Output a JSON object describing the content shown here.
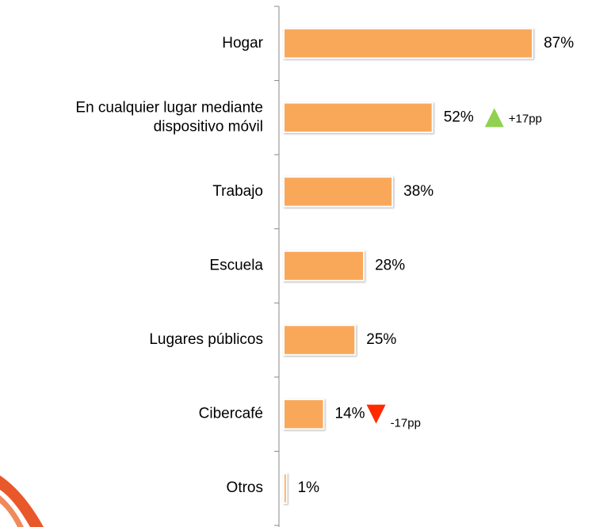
{
  "chart_data": {
    "type": "hbar",
    "categories": [
      "Hogar",
      "En cualquier lugar mediante\ndispositivo móvil",
      "Trabajo",
      "Escuela",
      "Lugares públicos",
      "Cibercafé",
      "Otros"
    ],
    "values": [
      87,
      52,
      38,
      28,
      25,
      14,
      1
    ],
    "value_labels": [
      "87%",
      "52%",
      "38%",
      "28%",
      "25%",
      "14%",
      "1%"
    ],
    "color": "#f9a85a",
    "xlim": [
      0,
      100
    ],
    "annotations": [
      {
        "category": "En cualquier lugar mediante\ndispositivo móvil",
        "text": "+17pp",
        "value": 17,
        "color": "#92d050"
      },
      {
        "category": "Cibercafé",
        "text": "-17pp",
        "value": -17,
        "color": "#ff2a00"
      }
    ]
  }
}
